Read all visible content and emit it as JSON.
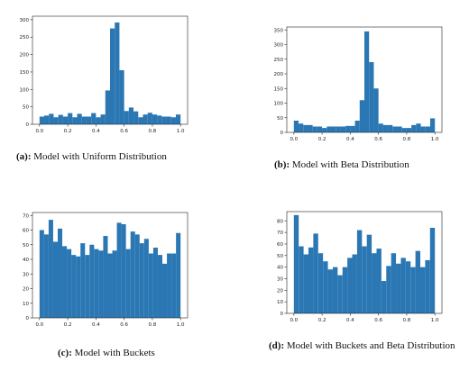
{
  "figures": [
    {
      "caption_label": "(a):",
      "caption_text": "Model with Uniform Distribution",
      "chart_data": {
        "type": "bar",
        "title": "",
        "xlabel": "",
        "ylabel": "",
        "xlim": [
          0.0,
          1.0
        ],
        "ylim": [
          0,
          310
        ],
        "xticks": [
          "0.0",
          "0.2",
          "0.4",
          "0.6",
          "0.8",
          "1.0"
        ],
        "yticks": [
          0,
          50,
          100,
          150,
          200,
          250,
          300
        ],
        "bin_edges_start": 0.0,
        "bin_width": 0.0333,
        "values": [
          22,
          25,
          30,
          20,
          27,
          22,
          32,
          20,
          30,
          22,
          22,
          32,
          20,
          28,
          97,
          275,
          292,
          155,
          38,
          48,
          37,
          20,
          28,
          33,
          28,
          25,
          22,
          22,
          20,
          28
        ],
        "color": "#2a77b4"
      }
    },
    {
      "caption_label": "(b):",
      "caption_text": "Model with Beta Distribution",
      "chart_data": {
        "type": "bar",
        "title": "",
        "xlabel": "",
        "ylabel": "",
        "xlim": [
          0.0,
          1.0
        ],
        "ylim": [
          0,
          360
        ],
        "xticks": [
          "0.0",
          "0.2",
          "0.4",
          "0.6",
          "0.8",
          "1.0"
        ],
        "yticks": [
          0,
          50,
          100,
          150,
          200,
          250,
          300,
          350
        ],
        "bin_edges_start": 0.0,
        "bin_width": 0.0333,
        "values": [
          40,
          30,
          25,
          25,
          20,
          20,
          15,
          20,
          20,
          20,
          20,
          22,
          22,
          40,
          110,
          345,
          240,
          150,
          30,
          25,
          25,
          20,
          20,
          15,
          15,
          25,
          30,
          20,
          20,
          48
        ],
        "color": "#2a77b4"
      }
    },
    {
      "caption_label": "(c):",
      "caption_text": "Model with Buckets",
      "chart_data": {
        "type": "bar",
        "title": "",
        "xlabel": "",
        "ylabel": "",
        "xlim": [
          0.0,
          1.0
        ],
        "ylim": [
          0,
          72
        ],
        "xticks": [
          "0.0",
          "0.2",
          "0.4",
          "0.6",
          "0.8",
          "1.0"
        ],
        "yticks": [
          0,
          10,
          20,
          30,
          40,
          50,
          60,
          70
        ],
        "bin_edges_start": 0.0,
        "bin_width": 0.0333,
        "values": [
          60,
          57,
          67,
          52,
          61,
          49,
          47,
          43,
          42,
          51,
          43,
          50,
          47,
          46,
          56,
          44,
          46,
          65,
          64,
          47,
          59,
          57,
          51,
          54,
          44,
          48,
          43,
          37,
          44,
          44,
          58
        ],
        "color": "#2a77b4"
      }
    },
    {
      "caption_label": "(d):",
      "caption_text": "Model with Buckets and Beta Distribution",
      "chart_data": {
        "type": "bar",
        "title": "",
        "xlabel": "",
        "ylabel": "",
        "xlim": [
          0.0,
          1.0
        ],
        "ylim": [
          0,
          88
        ],
        "xticks": [
          "0.0",
          "0.2",
          "0.4",
          "0.6",
          "0.8",
          "1.0"
        ],
        "yticks": [
          0,
          10,
          20,
          30,
          40,
          50,
          60,
          70,
          80
        ],
        "bin_edges_start": 0.0,
        "bin_width": 0.0333,
        "values": [
          85,
          58,
          51,
          57,
          69,
          52,
          45,
          38,
          40,
          33,
          40,
          48,
          51,
          72,
          58,
          68,
          52,
          56,
          28,
          41,
          52,
          43,
          48,
          45,
          40,
          54,
          40,
          46,
          74
        ],
        "color": "#2a77b4"
      }
    }
  ]
}
